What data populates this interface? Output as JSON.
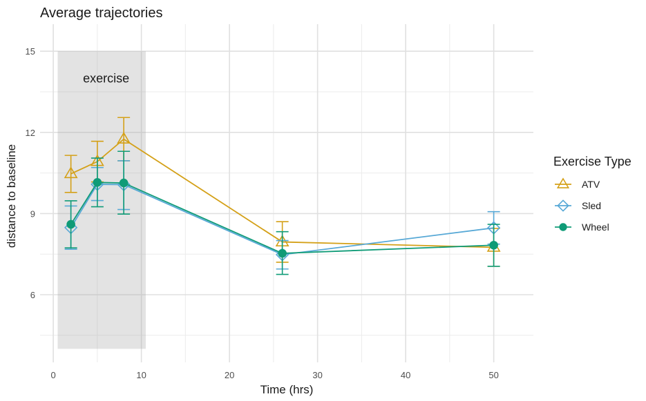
{
  "chart_data": {
    "type": "line",
    "title": "Average trajectories",
    "xlabel": "Time (hrs)",
    "ylabel": "distance to baseline",
    "xlim": [
      -1.5,
      54.5
    ],
    "ylim": [
      3.5,
      16
    ],
    "x_ticks": [
      0,
      10,
      20,
      30,
      40,
      50
    ],
    "x_tick_labels": [
      "0",
      "10",
      "20",
      "30",
      "40",
      "50"
    ],
    "y_ticks": [
      6,
      9,
      12,
      15
    ],
    "y_tick_labels": [
      "6",
      "9",
      "12",
      "15"
    ],
    "grid": true,
    "shaded_region": {
      "x": [
        0.5,
        10.5
      ],
      "y": [
        4,
        15
      ],
      "label": "exercise",
      "label_x": 6,
      "label_y": 14.0
    },
    "legend": {
      "title": "Exercise Type",
      "position": "right"
    },
    "series": [
      {
        "name": "ATV",
        "color": "#D4A017",
        "marker": "triangle",
        "points": [
          {
            "x": 2,
            "y": 10.47,
            "lo": 9.78,
            "hi": 11.15
          },
          {
            "x": 5,
            "y": 10.92,
            "lo": 10.17,
            "hi": 11.67
          },
          {
            "x": 8,
            "y": 11.75,
            "lo": 10.95,
            "hi": 12.55
          },
          {
            "x": 26,
            "y": 7.95,
            "lo": 7.2,
            "hi": 8.7
          },
          {
            "x": 50,
            "y": 7.75,
            "lo": 7.05,
            "hi": 8.45
          }
        ]
      },
      {
        "name": "Sled",
        "color": "#56A8D6",
        "marker": "diamond",
        "points": [
          {
            "x": 2,
            "y": 8.48,
            "lo": 7.68,
            "hi": 9.28
          },
          {
            "x": 5,
            "y": 10.08,
            "lo": 9.48,
            "hi": 10.7
          },
          {
            "x": 8,
            "y": 10.07,
            "lo": 9.15,
            "hi": 10.95
          },
          {
            "x": 26,
            "y": 7.48,
            "lo": 6.95,
            "hi": 8.0
          },
          {
            "x": 50,
            "y": 8.47,
            "lo": 7.87,
            "hi": 9.07
          }
        ]
      },
      {
        "name": "Wheel",
        "color": "#0F9B77",
        "marker": "circle",
        "points": [
          {
            "x": 2,
            "y": 8.6,
            "lo": 7.73,
            "hi": 9.47
          },
          {
            "x": 5,
            "y": 10.15,
            "lo": 9.25,
            "hi": 11.05
          },
          {
            "x": 8,
            "y": 10.13,
            "lo": 8.98,
            "hi": 11.3
          },
          {
            "x": 26,
            "y": 7.53,
            "lo": 6.75,
            "hi": 8.33
          },
          {
            "x": 50,
            "y": 7.83,
            "lo": 7.05,
            "hi": 8.6
          }
        ]
      }
    ]
  }
}
